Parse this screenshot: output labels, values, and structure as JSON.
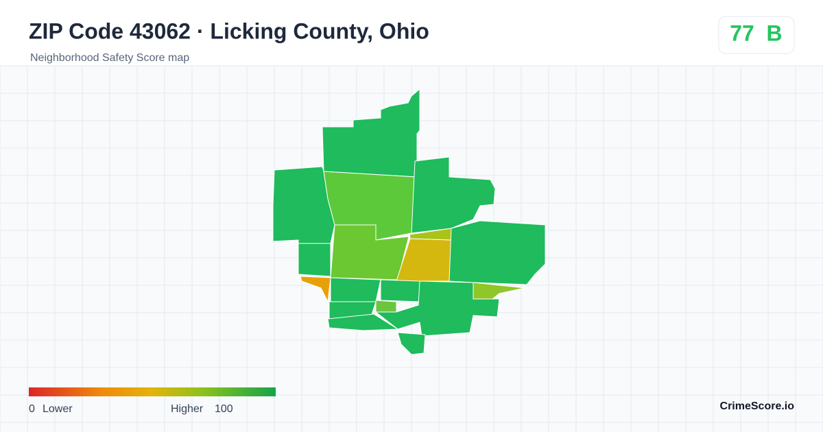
{
  "header": {
    "title": "ZIP Code 43062 · Licking County, Ohio",
    "subtitle": "Neighborhood Safety Score map"
  },
  "score": {
    "value": "77",
    "grade": "B"
  },
  "legend": {
    "min": "0",
    "min_label": "Lower",
    "max_label": "Higher",
    "max": "100"
  },
  "brand": "CrimeScore.io"
}
